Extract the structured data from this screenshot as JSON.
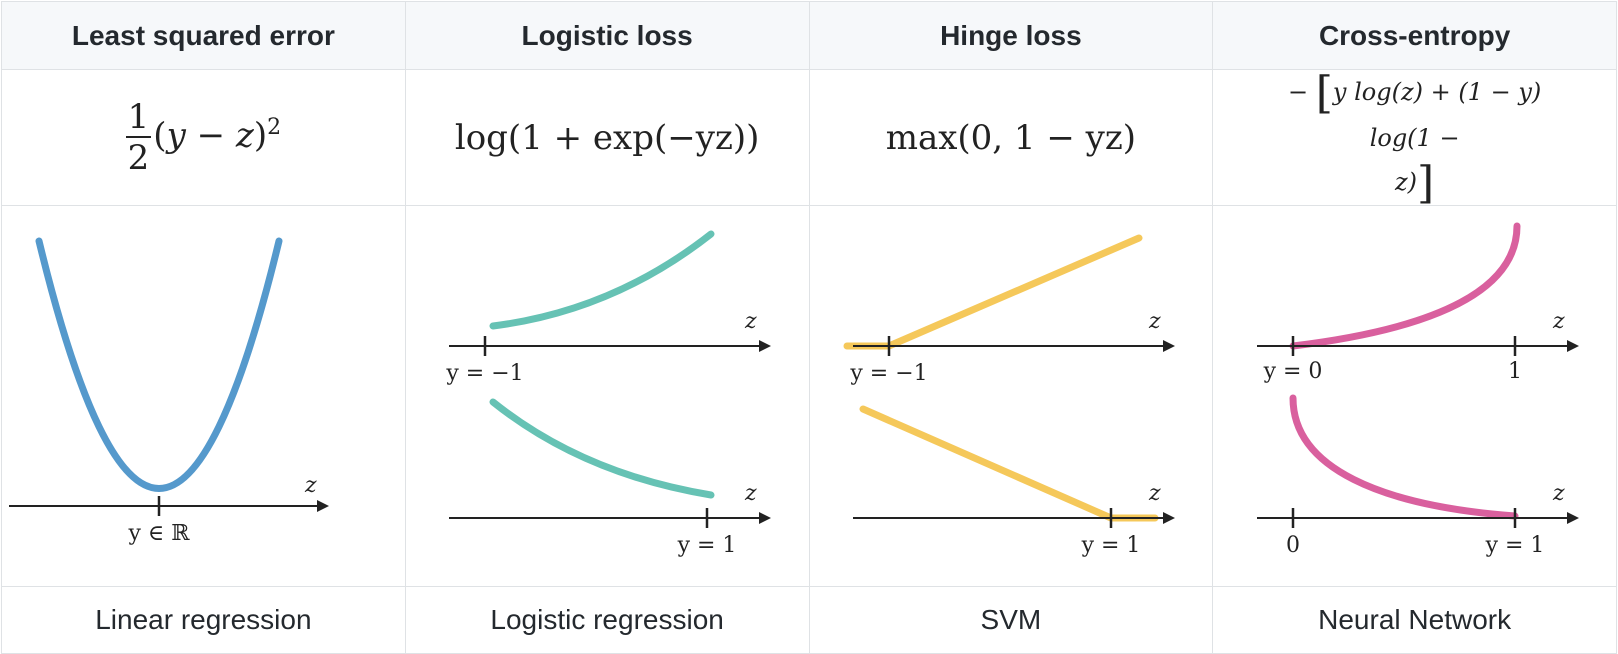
{
  "columns": [
    {
      "header": "Least squared error",
      "formula": {
        "frac_num": "1",
        "frac_den": "2",
        "open": "(",
        "y": "y",
        "minus": " − ",
        "z": "z",
        "close": ")",
        "exp": "2"
      },
      "plots": [
        {
          "axis_label": "z",
          "tick_label": "y ∈ ℝ"
        }
      ],
      "model": "Linear regression"
    },
    {
      "header": "Logistic loss",
      "formula": {
        "text": "log(1 + exp(−yz))"
      },
      "plots": [
        {
          "axis_label": "z",
          "tick_label": "y = −1"
        },
        {
          "axis_label": "z",
          "tick_label": "y = 1"
        }
      ],
      "model": "Logistic regression"
    },
    {
      "header": "Hinge loss",
      "formula": {
        "text": "max(0, 1 − yz)"
      },
      "plots": [
        {
          "axis_label": "z",
          "tick_label": "y = −1"
        },
        {
          "axis_label": "z",
          "tick_label": "y = 1"
        }
      ],
      "model": "SVM"
    },
    {
      "header": "Cross-entropy",
      "formula": {
        "line1": "y log(z) + (1 − y) log(1 −",
        "line2": "z)",
        "lead": "−",
        "lbracket": "[",
        "rbracket": "]"
      },
      "plots": [
        {
          "axis_label": "z",
          "tick_left": "y = 0",
          "tick_right": "1"
        },
        {
          "axis_label": "z",
          "tick_left": "0",
          "tick_right": "y = 1"
        }
      ],
      "model": "Neural Network"
    }
  ],
  "colors": {
    "squared": "#5599cc",
    "logistic": "#66c2b4",
    "hinge": "#f5c85a",
    "cross_entropy": "#d9609e",
    "axis": "#222222"
  }
}
